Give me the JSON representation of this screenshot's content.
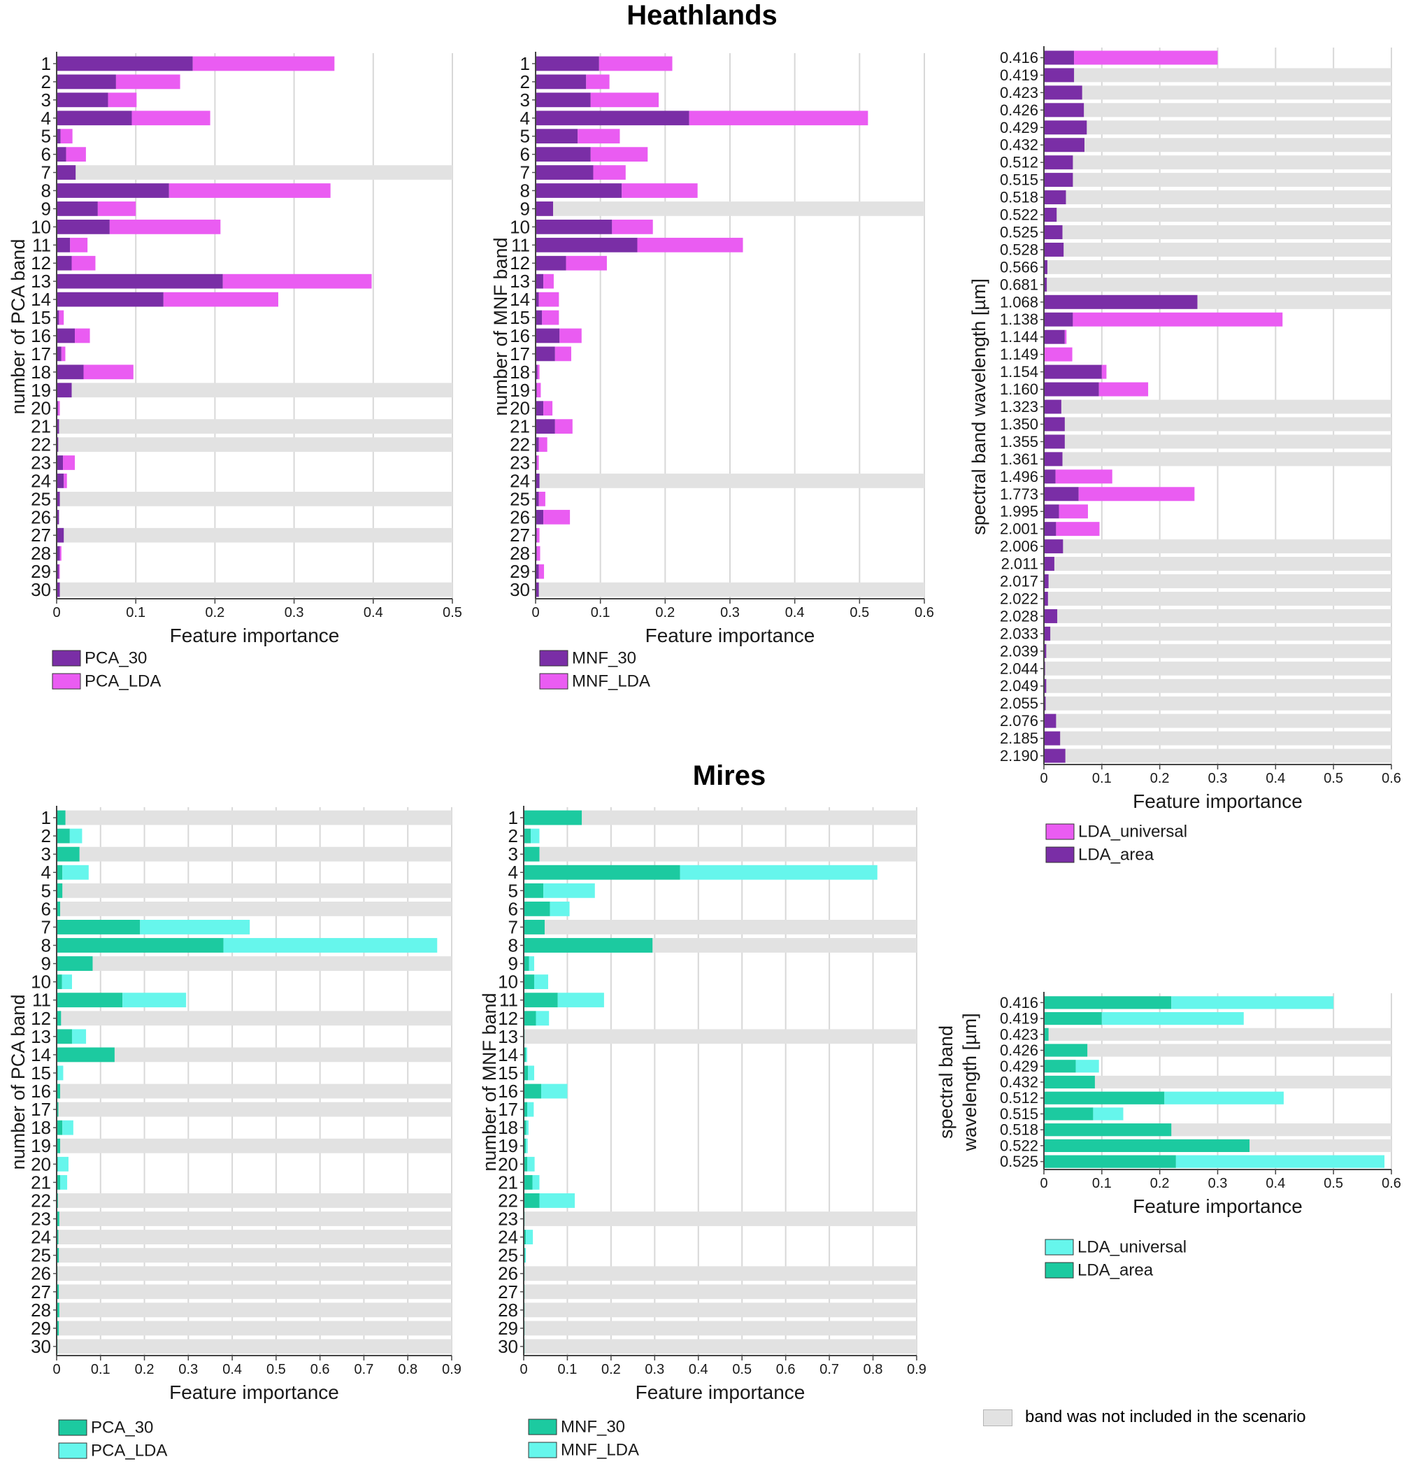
{
  "colors": {
    "heath_dark": "#7a2ea6",
    "heath_light": "#ea5cf2",
    "mire_dark": "#1ccaa0",
    "mire_light": "#66f6ec",
    "not_included": "#e2e2e2",
    "grid": "#d8d8d8"
  },
  "titles": {
    "heathlands": "Heathlands",
    "mires": "Mires"
  },
  "not_included_note": "band was not included in the scenario",
  "chart_data": [
    {
      "id": "heath-pca",
      "type": "bar",
      "orientation": "horizontal",
      "stacked": true,
      "palette": "heath",
      "title": "Heathlands",
      "xlabel": "Feature importance",
      "ylabel": "number of PCA band",
      "xlim": [
        0,
        0.5
      ],
      "xticks": [
        "0",
        "0.1",
        "0.2",
        "0.3",
        "0.4",
        "0.5"
      ],
      "categories": [
        "1",
        "2",
        "3",
        "4",
        "5",
        "6",
        "7",
        "8",
        "9",
        "10",
        "11",
        "12",
        "13",
        "14",
        "15",
        "16",
        "17",
        "18",
        "19",
        "20",
        "21",
        "22",
        "23",
        "24",
        "25",
        "26",
        "27",
        "28",
        "29",
        "30"
      ],
      "series": [
        {
          "name": "PCA_30",
          "values": [
            0.172,
            0.075,
            0.065,
            0.095,
            0.005,
            0.012,
            0.024,
            0.142,
            0.052,
            0.067,
            0.017,
            0.019,
            0.21,
            0.135,
            0.003,
            0.023,
            0.006,
            0.034,
            0.019,
            0.002,
            0.003,
            0.002,
            0.008,
            0.009,
            0.004,
            0.003,
            0.009,
            0.004,
            0.003,
            0.004
          ]
        },
        {
          "name": "PCA_LDA",
          "values": [
            0.179,
            0.081,
            0.036,
            0.099,
            0.015,
            0.025,
            0.0,
            0.204,
            0.048,
            0.14,
            0.022,
            0.03,
            0.188,
            0.145,
            0.006,
            0.019,
            0.005,
            0.063,
            0.0,
            0.002,
            0.0,
            0.0,
            0.015,
            0.004,
            0.0,
            0.0,
            0.0,
            0.002,
            0.001,
            0.0
          ]
        }
      ],
      "not_included": [
        "7",
        "19",
        "21",
        "22",
        "25",
        "27",
        "30"
      ]
    },
    {
      "id": "heath-mnf",
      "type": "bar",
      "orientation": "horizontal",
      "stacked": true,
      "palette": "heath",
      "title": "Heathlands",
      "xlabel": "Feature importance",
      "ylabel": "number of MNF band",
      "xlim": [
        0,
        0.6
      ],
      "xticks": [
        "0",
        "0.1",
        "0.2",
        "0.3",
        "0.4",
        "0.5",
        "0.6"
      ],
      "categories": [
        "1",
        "2",
        "3",
        "4",
        "5",
        "6",
        "7",
        "8",
        "9",
        "10",
        "11",
        "12",
        "13",
        "14",
        "15",
        "16",
        "17",
        "18",
        "19",
        "20",
        "21",
        "22",
        "23",
        "24",
        "25",
        "26",
        "27",
        "28",
        "29",
        "30"
      ],
      "series": [
        {
          "name": "MNF_30",
          "values": [
            0.098,
            0.078,
            0.085,
            0.237,
            0.065,
            0.085,
            0.089,
            0.133,
            0.027,
            0.118,
            0.157,
            0.047,
            0.012,
            0.005,
            0.01,
            0.037,
            0.03,
            0.003,
            0.002,
            0.012,
            0.03,
            0.005,
            0.002,
            0.006,
            0.005,
            0.012,
            0.002,
            0.002,
            0.005,
            0.005
          ]
        },
        {
          "name": "MNF_LDA",
          "values": [
            0.113,
            0.036,
            0.105,
            0.276,
            0.065,
            0.088,
            0.05,
            0.117,
            0.0,
            0.063,
            0.163,
            0.063,
            0.016,
            0.031,
            0.026,
            0.034,
            0.025,
            0.003,
            0.006,
            0.014,
            0.027,
            0.013,
            0.003,
            0.0,
            0.01,
            0.041,
            0.004,
            0.005,
            0.008,
            0.0
          ]
        }
      ],
      "not_included": [
        "9",
        "24",
        "30"
      ]
    },
    {
      "id": "heath-wavelength",
      "type": "bar",
      "orientation": "horizontal",
      "stacked": true,
      "palette": "heath",
      "title": "Heathlands",
      "xlabel": "Feature importance",
      "ylabel": "spectral band wavelength [µm]",
      "xlim": [
        0,
        0.6
      ],
      "xticks": [
        "0",
        "0.1",
        "0.2",
        "0.3",
        "0.4",
        "0.5",
        "0.6"
      ],
      "categories": [
        "0.416",
        "0.419",
        "0.423",
        "0.426",
        "0.429",
        "0.432",
        "0.512",
        "0.515",
        "0.518",
        "0.522",
        "0.525",
        "0.528",
        "0.566",
        "0.681",
        "1.068",
        "1.138",
        "1.144",
        "1.149",
        "1.154",
        "1.160",
        "1.323",
        "1.350",
        "1.355",
        "1.361",
        "1.496",
        "1.773",
        "1.995",
        "2.001",
        "2.006",
        "2.011",
        "2.017",
        "2.022",
        "2.028",
        "2.033",
        "2.039",
        "2.044",
        "2.049",
        "2.055",
        "2.076",
        "2.185",
        "2.190"
      ],
      "series": [
        {
          "name": "LDA_area",
          "values": [
            0.052,
            0.052,
            0.066,
            0.069,
            0.074,
            0.07,
            0.05,
            0.05,
            0.038,
            0.022,
            0.032,
            0.034,
            0.006,
            0.005,
            0.265,
            0.05,
            0.036,
            0.0,
            0.1,
            0.095,
            0.03,
            0.036,
            0.036,
            0.032,
            0.02,
            0.06,
            0.026,
            0.021,
            0.033,
            0.018,
            0.008,
            0.007,
            0.023,
            0.011,
            0.004,
            0.002,
            0.004,
            0.003,
            0.021,
            0.028,
            0.037
          ]
        },
        {
          "name": "LDA_universal",
          "values": [
            0.248,
            0.0,
            0.0,
            0.0,
            0.0,
            0.0,
            0.0,
            0.0,
            0.0,
            0.0,
            0.0,
            0.0,
            0.0,
            0.0,
            0.0,
            0.362,
            0.003,
            0.049,
            0.008,
            0.085,
            0.0,
            0.0,
            0.0,
            0.0,
            0.098,
            0.2,
            0.05,
            0.075,
            0.0,
            0.0,
            0.0,
            0.0,
            0.0,
            0.0,
            0.0,
            0.0,
            0.0,
            0.0,
            0.0,
            0.0,
            0.0
          ]
        }
      ],
      "not_included": [
        "0.419",
        "0.423",
        "0.426",
        "0.429",
        "0.432",
        "0.512",
        "0.515",
        "0.518",
        "0.522",
        "0.525",
        "0.528",
        "0.566",
        "0.681",
        "1.068",
        "1.323",
        "1.350",
        "1.355",
        "1.361",
        "2.006",
        "2.011",
        "2.017",
        "2.022",
        "2.028",
        "2.033",
        "2.039",
        "2.044",
        "2.049",
        "2.055",
        "2.076",
        "2.185",
        "2.190"
      ]
    },
    {
      "id": "mire-pca",
      "type": "bar",
      "orientation": "horizontal",
      "stacked": true,
      "palette": "mire",
      "title": "Mires",
      "xlabel": "Feature importance",
      "ylabel": "number of PCA band",
      "xlim": [
        0,
        0.9
      ],
      "xticks": [
        "0",
        "0.1",
        "0.2",
        "0.3",
        "0.4",
        "0.5",
        "0.6",
        "0.7",
        "0.8",
        "0.9"
      ],
      "categories": [
        "1",
        "2",
        "3",
        "4",
        "5",
        "6",
        "7",
        "8",
        "9",
        "10",
        "11",
        "12",
        "13",
        "14",
        "15",
        "16",
        "17",
        "18",
        "19",
        "20",
        "21",
        "22",
        "23",
        "24",
        "25",
        "26",
        "27",
        "28",
        "29",
        "30"
      ],
      "series": [
        {
          "name": "PCA_30",
          "values": [
            0.02,
            0.03,
            0.052,
            0.013,
            0.013,
            0.008,
            0.19,
            0.38,
            0.082,
            0.012,
            0.15,
            0.01,
            0.035,
            0.132,
            0.003,
            0.008,
            0.004,
            0.013,
            0.008,
            0.003,
            0.008,
            0.003,
            0.006,
            0.004,
            0.005,
            0.002,
            0.005,
            0.006,
            0.005,
            0.002
          ]
        },
        {
          "name": "PCA_LDA",
          "values": [
            0.0,
            0.028,
            0.0,
            0.06,
            0.0,
            0.0,
            0.25,
            0.487,
            0.0,
            0.023,
            0.145,
            0.0,
            0.032,
            0.0,
            0.012,
            0.0,
            0.0,
            0.025,
            0.0,
            0.024,
            0.016,
            0.0,
            0.0,
            0.0,
            0.0,
            0.0,
            0.0,
            0.0,
            0.0,
            0.0
          ]
        }
      ],
      "not_included": [
        "1",
        "3",
        "5",
        "6",
        "9",
        "12",
        "14",
        "16",
        "17",
        "19",
        "22",
        "23",
        "24",
        "25",
        "26",
        "27",
        "28",
        "29",
        "30"
      ]
    },
    {
      "id": "mire-mnf",
      "type": "bar",
      "orientation": "horizontal",
      "stacked": true,
      "palette": "mire",
      "title": "Mires",
      "xlabel": "Feature importance",
      "ylabel": "number of MNF band",
      "xlim": [
        0,
        0.9
      ],
      "xticks": [
        "0",
        "0.1",
        "0.2",
        "0.3",
        "0.4",
        "0.5",
        "0.6",
        "0.7",
        "0.8",
        "0.9"
      ],
      "categories": [
        "1",
        "2",
        "3",
        "4",
        "5",
        "6",
        "7",
        "8",
        "9",
        "10",
        "11",
        "12",
        "13",
        "14",
        "15",
        "16",
        "17",
        "18",
        "19",
        "20",
        "21",
        "22",
        "23",
        "24",
        "25",
        "26",
        "27",
        "28",
        "29",
        "30"
      ],
      "series": [
        {
          "name": "MNF_30",
          "values": [
            0.133,
            0.016,
            0.036,
            0.358,
            0.045,
            0.06,
            0.048,
            0.295,
            0.012,
            0.024,
            0.078,
            0.028,
            0.002,
            0.005,
            0.01,
            0.04,
            0.008,
            0.006,
            0.005,
            0.008,
            0.02,
            0.036,
            0.002,
            0.005,
            0.003,
            0.002,
            0.002,
            0.002,
            0.002,
            0.002
          ]
        },
        {
          "name": "MNF_LDA",
          "values": [
            0.0,
            0.02,
            0.0,
            0.452,
            0.118,
            0.045,
            0.0,
            0.0,
            0.012,
            0.032,
            0.106,
            0.03,
            0.0,
            0.003,
            0.014,
            0.06,
            0.015,
            0.005,
            0.004,
            0.017,
            0.016,
            0.081,
            0.0,
            0.016,
            0.002,
            0.0,
            0.0,
            0.0,
            0.0,
            0.0
          ]
        }
      ],
      "not_included": [
        "1",
        "3",
        "7",
        "8",
        "13",
        "23",
        "26",
        "27",
        "28",
        "29",
        "30"
      ]
    },
    {
      "id": "mire-wavelength",
      "type": "bar",
      "orientation": "horizontal",
      "stacked": true,
      "palette": "mire",
      "title": "Mires",
      "xlabel": "Feature importance",
      "ylabel": "spectral band wavelength [µm]",
      "ylabel_lines": [
        "spectral band",
        "wavelength [µm]"
      ],
      "xlim": [
        0,
        0.6
      ],
      "xticks": [
        "0",
        "0.1",
        "0.2",
        "0.3",
        "0.4",
        "0.5",
        "0.6"
      ],
      "categories": [
        "0.416",
        "0.419",
        "0.423",
        "0.426",
        "0.429",
        "0.432",
        "0.512",
        "0.515",
        "0.518",
        "0.522",
        "0.525"
      ],
      "series": [
        {
          "name": "LDA_area",
          "values": [
            0.22,
            0.1,
            0.008,
            0.075,
            0.055,
            0.088,
            0.208,
            0.085,
            0.22,
            0.355,
            0.228
          ]
        },
        {
          "name": "LDA_universal",
          "values": [
            0.28,
            0.245,
            0.0,
            0.0,
            0.04,
            0.0,
            0.206,
            0.052,
            0.0,
            0.0,
            0.36
          ]
        }
      ],
      "not_included": [
        "0.423",
        "0.426",
        "0.432",
        "0.518",
        "0.522"
      ]
    }
  ],
  "legends": [
    {
      "chart": "heath-pca",
      "items": [
        {
          "label": "PCA_30",
          "color": "#7a2ea6"
        },
        {
          "label": "PCA_LDA",
          "color": "#ea5cf2"
        }
      ]
    },
    {
      "chart": "heath-mnf",
      "items": [
        {
          "label": "MNF_30",
          "color": "#7a2ea6"
        },
        {
          "label": "MNF_LDA",
          "color": "#ea5cf2"
        }
      ]
    },
    {
      "chart": "heath-wavelength",
      "items": [
        {
          "label": "LDA_universal",
          "color": "#ea5cf2"
        },
        {
          "label": "LDA_area",
          "color": "#7a2ea6"
        }
      ]
    },
    {
      "chart": "mire-pca",
      "items": [
        {
          "label": "PCA_30",
          "color": "#1ccaa0"
        },
        {
          "label": "PCA_LDA",
          "color": "#66f6ec"
        }
      ]
    },
    {
      "chart": "mire-mnf",
      "items": [
        {
          "label": "MNF_30",
          "color": "#1ccaa0"
        },
        {
          "label": "MNF_LDA",
          "color": "#66f6ec"
        }
      ]
    },
    {
      "chart": "mire-wavelength",
      "items": [
        {
          "label": "LDA_universal",
          "color": "#66f6ec"
        },
        {
          "label": "LDA_area",
          "color": "#1ccaa0"
        }
      ]
    }
  ]
}
